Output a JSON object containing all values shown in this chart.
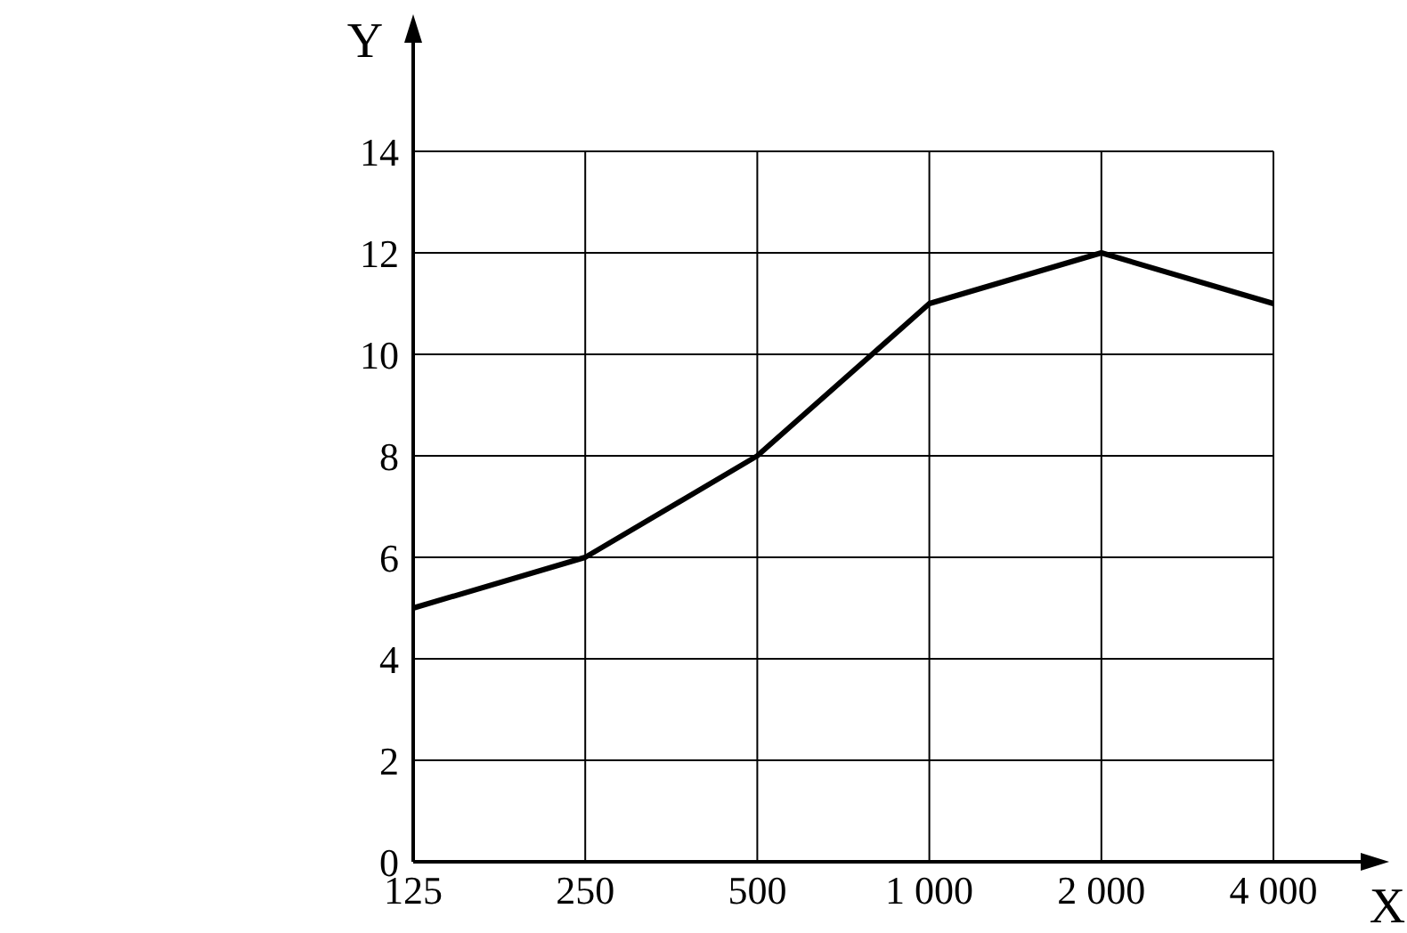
{
  "chart_data": {
    "type": "line",
    "xlabel": "X",
    "ylabel": "Y",
    "categories": [
      "125",
      "250",
      "500",
      "1 000",
      "2 000",
      "4 000"
    ],
    "series": [
      {
        "color": "#000000",
        "values": [
          5,
          6,
          8,
          11,
          12,
          11
        ]
      }
    ],
    "ylim": [
      0,
      14
    ],
    "yticks": [
      0,
      2,
      4,
      6,
      8,
      10,
      12,
      14
    ],
    "grid": true,
    "marker": "none",
    "line_style": "solid"
  }
}
